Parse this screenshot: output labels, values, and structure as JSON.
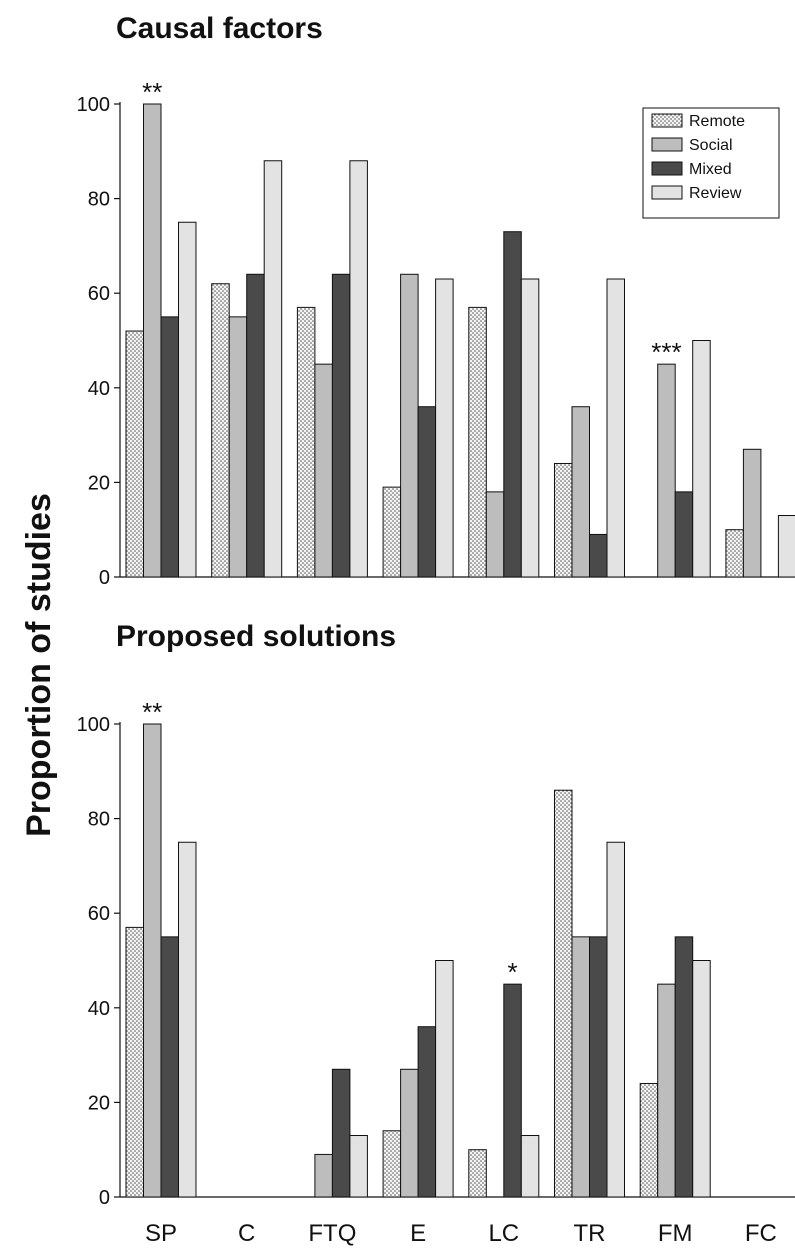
{
  "ylabel": "Proportion of studies",
  "legend": [
    {
      "label": "Remote",
      "color": "#f3f3f3",
      "pattern": "dotted"
    },
    {
      "label": "Social",
      "color": "#bdbdbd",
      "pattern": "solid"
    },
    {
      "label": "Mixed",
      "color": "#4a4a4a",
      "pattern": "solid"
    },
    {
      "label": "Review",
      "color": "#e3e3e3",
      "pattern": "solid"
    }
  ],
  "chart_data": [
    {
      "type": "bar",
      "title": "Causal factors",
      "categories": [
        "SP",
        "C",
        "FTQ",
        "E",
        "LC",
        "TR",
        "FM",
        "FC"
      ],
      "ylim": [
        0,
        100
      ],
      "yticks": [
        0,
        20,
        40,
        60,
        80,
        100
      ],
      "legend_position": "top-right",
      "series": [
        {
          "name": "Remote",
          "values": [
            52,
            62,
            57,
            19,
            57,
            24,
            0,
            10
          ]
        },
        {
          "name": "Social",
          "values": [
            100,
            55,
            45,
            64,
            18,
            36,
            45,
            27
          ]
        },
        {
          "name": "Mixed",
          "values": [
            55,
            64,
            64,
            36,
            73,
            9,
            18,
            0
          ]
        },
        {
          "name": "Review",
          "values": [
            75,
            88,
            88,
            63,
            63,
            63,
            50,
            13
          ]
        }
      ],
      "annotations": [
        {
          "text": "**",
          "category": "SP",
          "series": "Social"
        },
        {
          "text": "***",
          "category": "FM",
          "series": "Social"
        }
      ]
    },
    {
      "type": "bar",
      "title": "Proposed solutions",
      "categories": [
        "SP",
        "C",
        "FTQ",
        "E",
        "LC",
        "TR",
        "FM",
        "FC"
      ],
      "ylim": [
        0,
        100
      ],
      "yticks": [
        0,
        20,
        40,
        60,
        80,
        100
      ],
      "series": [
        {
          "name": "Remote",
          "values": [
            57,
            0,
            0,
            14,
            10,
            86,
            24,
            0
          ]
        },
        {
          "name": "Social",
          "values": [
            100,
            0,
            9,
            27,
            0,
            55,
            45,
            0
          ]
        },
        {
          "name": "Mixed",
          "values": [
            55,
            0,
            27,
            36,
            45,
            55,
            55,
            0
          ]
        },
        {
          "name": "Review",
          "values": [
            75,
            0,
            13,
            50,
            13,
            75,
            50,
            0
          ]
        }
      ],
      "annotations": [
        {
          "text": "**",
          "category": "SP",
          "series": "Social"
        },
        {
          "text": "*",
          "category": "LC",
          "series": "Mixed"
        }
      ]
    }
  ]
}
